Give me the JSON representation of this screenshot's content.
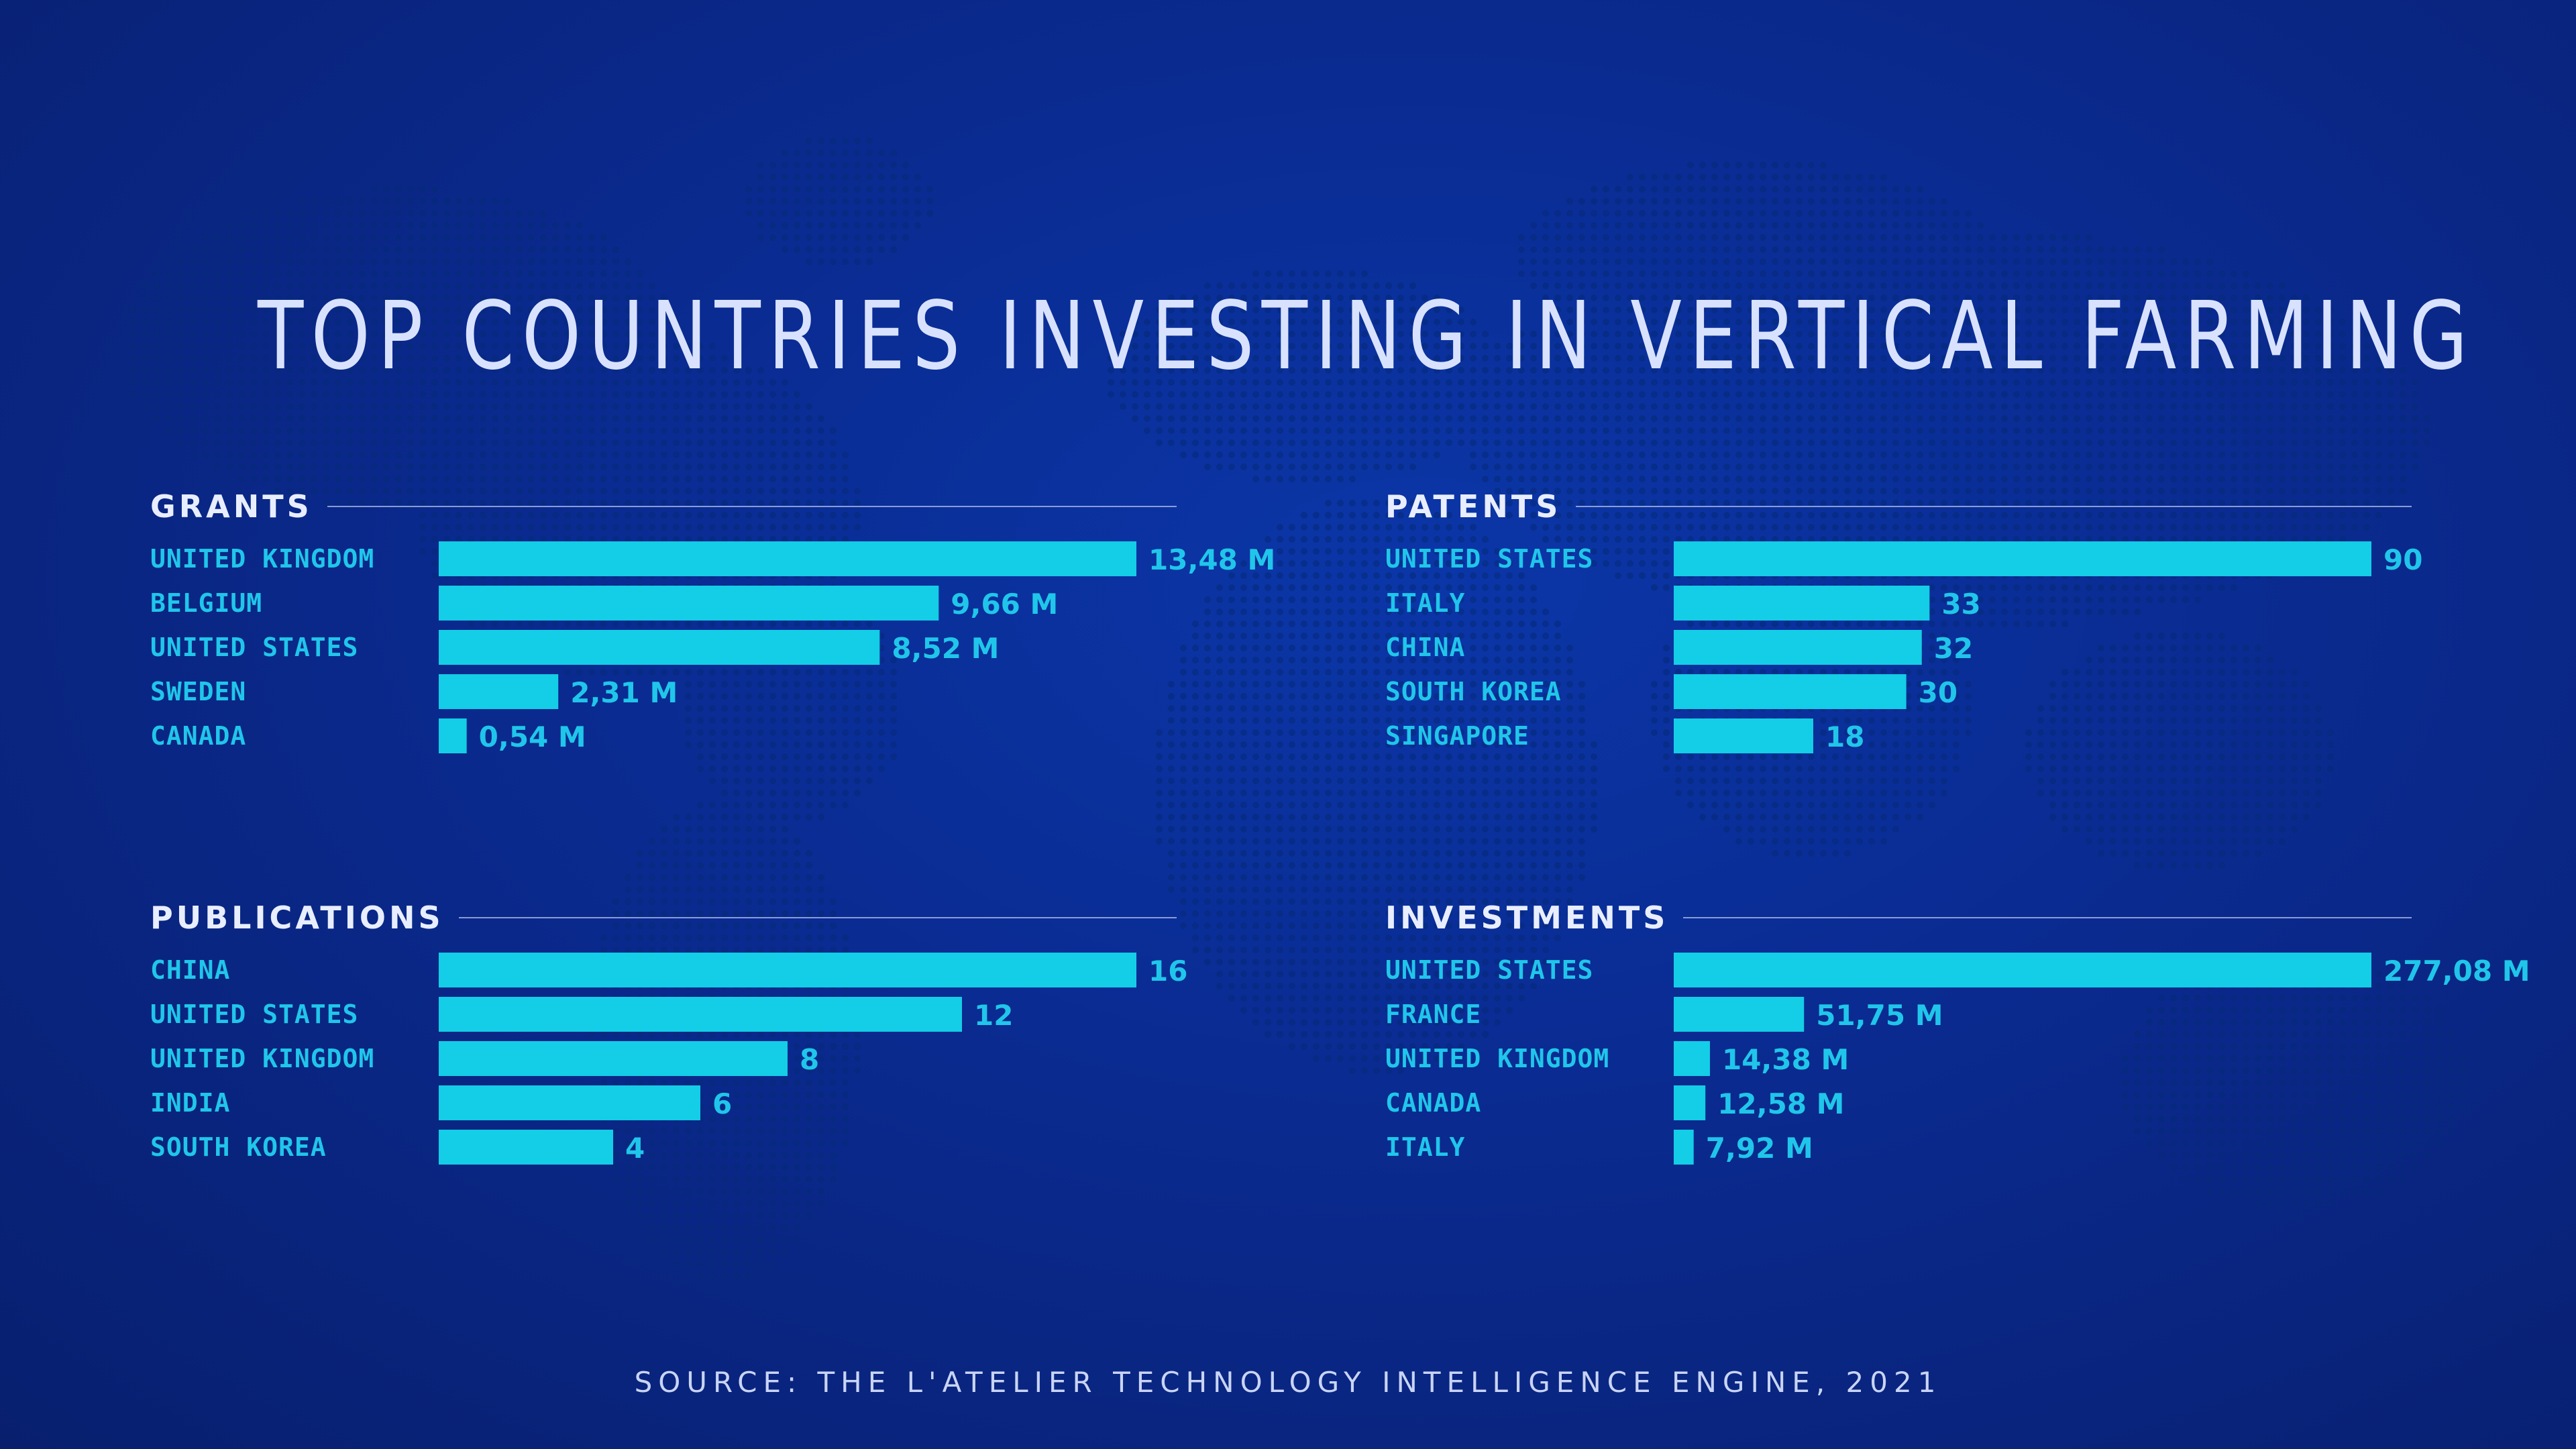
{
  "title": "TOP COUNTRIES INVESTING IN VERTICAL FARMING",
  "source": "SOURCE: THE L'ATELIER TECHNOLOGY INTELLIGENCE ENGINE, 2021",
  "colors": {
    "bar": "#14cde6",
    "label": "#20c6ea",
    "background": "#0a2a8f"
  },
  "chart_data": [
    {
      "type": "bar",
      "orientation": "horizontal",
      "title": "GRANTS",
      "categories": [
        "UNITED KINGDOM",
        "BELGIUM",
        "UNITED STATES",
        "SWEDEN",
        "CANADA"
      ],
      "values": [
        13.48,
        9.66,
        8.52,
        2.31,
        0.54
      ],
      "value_labels": [
        "13,48 M",
        "9,66 M",
        "8,52 M",
        "2,31 M",
        "0,54 M"
      ]
    },
    {
      "type": "bar",
      "orientation": "horizontal",
      "title": "PATENTS",
      "categories": [
        "UNITED STATES",
        "ITALY",
        "CHINA",
        "SOUTH KOREA",
        "SINGAPORE"
      ],
      "values": [
        90,
        33,
        32,
        30,
        18
      ],
      "value_labels": [
        "90",
        "33",
        "32",
        "30",
        "18"
      ]
    },
    {
      "type": "bar",
      "orientation": "horizontal",
      "title": "PUBLICATIONS",
      "categories": [
        "CHINA",
        "UNITED STATES",
        "UNITED KINGDOM",
        "INDIA",
        "SOUTH KOREA"
      ],
      "values": [
        16,
        12,
        8,
        6,
        4
      ],
      "value_labels": [
        "16",
        "12",
        "8",
        "6",
        "4"
      ]
    },
    {
      "type": "bar",
      "orientation": "horizontal",
      "title": "INVESTMENTS",
      "categories": [
        "UNITED STATES",
        "FRANCE",
        "UNITED KINGDOM",
        "CANADA",
        "ITALY"
      ],
      "values": [
        277.08,
        51.75,
        14.38,
        12.58,
        7.92
      ],
      "value_labels": [
        "277,08 M",
        "51,75 M",
        "14,38 M",
        "12,58 M",
        "7,92 M"
      ]
    }
  ]
}
